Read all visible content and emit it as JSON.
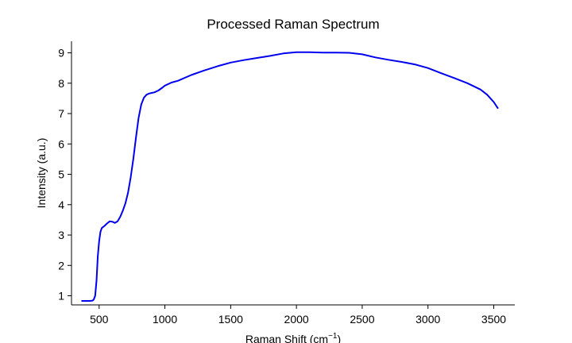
{
  "chart_data": {
    "type": "line",
    "title": "Processed Raman Spectrum",
    "xlabel": "Raman Shift (cm",
    "xlabel_superscript": "−1",
    "xlabel_suffix": ")",
    "ylabel": "Intensity (a.u.)",
    "xlim": [
      290,
      3660
    ],
    "ylim": [
      0.7,
      9.38
    ],
    "xticks": [
      500,
      1000,
      1500,
      2000,
      2500,
      3000,
      3500
    ],
    "yticks": [
      1,
      2,
      3,
      4,
      5,
      6,
      7,
      8,
      9
    ],
    "grid": false,
    "series": [
      {
        "color": "#0000ee",
        "x": [
          370,
          400,
          430,
          450,
          460,
          470,
          480,
          490,
          500,
          510,
          520,
          540,
          560,
          580,
          600,
          620,
          640,
          660,
          680,
          700,
          720,
          740,
          760,
          780,
          800,
          820,
          840,
          860,
          880,
          900,
          920,
          950,
          980,
          1000,
          1050,
          1100,
          1200,
          1300,
          1400,
          1500,
          1600,
          1700,
          1800,
          1900,
          2000,
          2100,
          2200,
          2300,
          2400,
          2500,
          2600,
          2700,
          2800,
          2900,
          3000,
          3100,
          3200,
          3300,
          3400,
          3450,
          3500,
          3530
        ],
        "y": [
          0.83,
          0.83,
          0.83,
          0.84,
          0.88,
          1.0,
          1.5,
          2.3,
          2.8,
          3.1,
          3.23,
          3.3,
          3.38,
          3.45,
          3.44,
          3.4,
          3.45,
          3.6,
          3.8,
          4.05,
          4.4,
          4.9,
          5.5,
          6.2,
          6.85,
          7.3,
          7.52,
          7.62,
          7.66,
          7.68,
          7.7,
          7.76,
          7.85,
          7.92,
          8.02,
          8.08,
          8.27,
          8.42,
          8.56,
          8.68,
          8.76,
          8.83,
          8.9,
          8.98,
          9.02,
          9.02,
          9.01,
          9.01,
          9.0,
          8.95,
          8.85,
          8.77,
          8.7,
          8.62,
          8.5,
          8.33,
          8.17,
          8.0,
          7.79,
          7.62,
          7.38,
          7.18
        ]
      }
    ]
  }
}
